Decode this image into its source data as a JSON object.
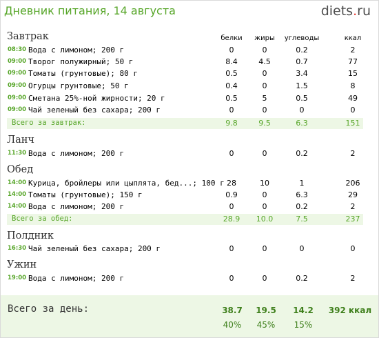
{
  "header": {
    "title": "Дневник питания, 14 августа",
    "logo": {
      "part1": "diets",
      "part2": ".",
      "part3": "ru"
    }
  },
  "columns": {
    "protein": "белки",
    "fat": "жиры",
    "carbs": "углеводы",
    "kcal": "ккал"
  },
  "meals": [
    {
      "name": "Завтрак",
      "items": [
        {
          "time": "08:30",
          "food": "Вода с лимоном; 200 г",
          "protein": "0",
          "fat": "0",
          "carbs": "0.2",
          "kcal": "2"
        },
        {
          "time": "09:00",
          "food": "Творог полужирный; 50 г",
          "protein": "8.4",
          "fat": "4.5",
          "carbs": "0.7",
          "kcal": "77"
        },
        {
          "time": "09:00",
          "food": "Томаты (грунтовые); 80 г",
          "protein": "0.5",
          "fat": "0",
          "carbs": "3.4",
          "kcal": "15"
        },
        {
          "time": "09:00",
          "food": "Огурцы грунтовые; 50 г",
          "protein": "0.4",
          "fat": "0",
          "carbs": "1.5",
          "kcal": "8"
        },
        {
          "time": "09:00",
          "food": "Сметана 25%-ной жирности; 20 г",
          "protein": "0.5",
          "fat": "5",
          "carbs": "0.5",
          "kcal": "49"
        },
        {
          "time": "09:00",
          "food": "Чай зеленый без сахара; 200 г",
          "protein": "0",
          "fat": "0",
          "carbs": "0",
          "kcal": "0"
        }
      ],
      "total": {
        "label": "Всего за завтрак:",
        "protein": "9.8",
        "fat": "9.5",
        "carbs": "6.3",
        "kcal": "151"
      }
    },
    {
      "name": "Ланч",
      "items": [
        {
          "time": "11:30",
          "food": "Вода с лимоном; 200 г",
          "protein": "0",
          "fat": "0",
          "carbs": "0.2",
          "kcal": "2"
        }
      ]
    },
    {
      "name": "Обед",
      "items": [
        {
          "time": "14:00",
          "food": "Курица, бройлеры или цыплята, бед...; 100 г",
          "protein": "28",
          "fat": "10",
          "carbs": "1",
          "kcal": "206"
        },
        {
          "time": "14:00",
          "food": "Томаты (грунтовые); 150 г",
          "protein": "0.9",
          "fat": "0",
          "carbs": "6.3",
          "kcal": "29"
        },
        {
          "time": "14:00",
          "food": "Вода с лимоном; 200 г",
          "protein": "0",
          "fat": "0",
          "carbs": "0.2",
          "kcal": "2"
        }
      ],
      "total": {
        "label": "Всего за обед:",
        "protein": "28.9",
        "fat": "10.0",
        "carbs": "7.5",
        "kcal": "237"
      }
    },
    {
      "name": "Полдник",
      "items": [
        {
          "time": "16:30",
          "food": "Чай зеленый без сахара; 200 г",
          "protein": "0",
          "fat": "0",
          "carbs": "0",
          "kcal": "0"
        }
      ]
    },
    {
      "name": "Ужин",
      "items": [
        {
          "time": "19:00",
          "food": "Вода с лимоном; 200 г",
          "protein": "0",
          "fat": "0",
          "carbs": "0.2",
          "kcal": "2"
        }
      ]
    }
  ],
  "day_total": {
    "label": "Всего за день:",
    "protein": "38.7",
    "fat": "19.5",
    "carbs": "14.2",
    "kcal": "392 ккал",
    "protein_pct": "40%",
    "fat_pct": "45%",
    "carbs_pct": "15%"
  },
  "colors": {
    "accent": "#57a629",
    "total_bg": "#edf7e5",
    "logo_red": "#e53127"
  }
}
